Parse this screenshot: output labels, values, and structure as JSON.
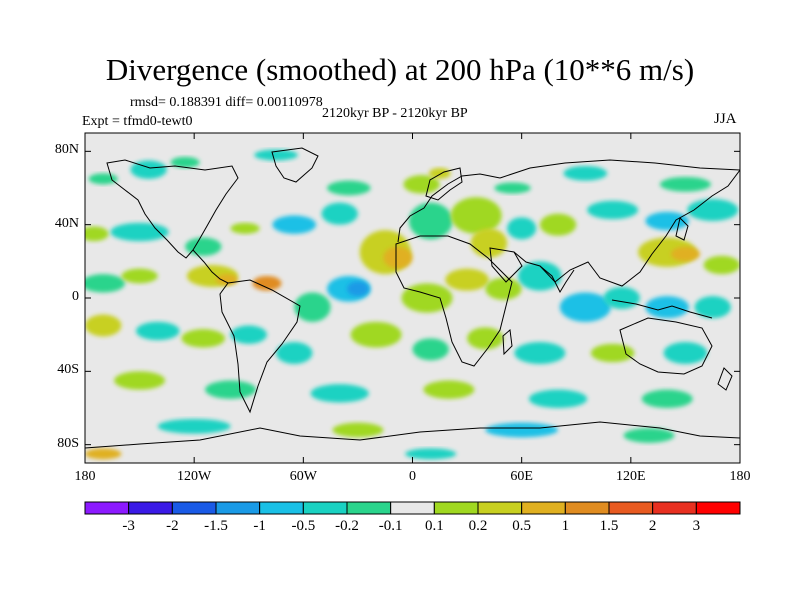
{
  "title": "Divergence (smoothed) at 200 hPa (10**6 m/s)",
  "stats": "rmsd= 0.188391 diff= 0.00110978",
  "period": "2120kyr BP - 2120kyr BP",
  "experiment": "Expt = tfmd0-tewt0",
  "season": "JJA",
  "axes": {
    "y_ticks": [
      {
        "label": "80N",
        "lat": 80
      },
      {
        "label": "40N",
        "lat": 40
      },
      {
        "label": "0",
        "lat": 0
      },
      {
        "label": "40S",
        "lat": -40
      },
      {
        "label": "80S",
        "lat": -80
      }
    ],
    "x_ticks": [
      {
        "label": "180",
        "lon": -180
      },
      {
        "label": "120W",
        "lon": -120
      },
      {
        "label": "60W",
        "lon": -60
      },
      {
        "label": "0",
        "lon": 0
      },
      {
        "label": "60E",
        "lon": 60
      },
      {
        "label": "120E",
        "lon": 120
      },
      {
        "label": "180",
        "lon": 180
      }
    ],
    "lon_range": [
      -180,
      180
    ],
    "lat_range": [
      -90,
      90
    ]
  },
  "colorbar": {
    "labels": [
      "-3",
      "-2",
      "-1.5",
      "-1",
      "-0.5",
      "-0.2",
      "-0.1",
      "0.1",
      "0.2",
      "0.5",
      "1",
      "1.5",
      "2",
      "3"
    ],
    "colors": [
      "#8c1aff",
      "#3a1ae6",
      "#1a5ae6",
      "#1a9ae6",
      "#1ac0e6",
      "#1ad2c2",
      "#2ad48c",
      "#e8e8e8",
      "#a0d820",
      "#c8d020",
      "#e0b020",
      "#e08c20",
      "#e85a20",
      "#e83020",
      "#ff0000"
    ]
  },
  "field": {
    "background": "#e8e8e8",
    "blobs": [
      {
        "lon": -170,
        "lat": 65,
        "rx": 8,
        "ry": 3,
        "c": "#2ad48c"
      },
      {
        "lon": -145,
        "lat": 70,
        "rx": 10,
        "ry": 5,
        "c": "#1ad2c2"
      },
      {
        "lon": -125,
        "lat": 74,
        "rx": 8,
        "ry": 3,
        "c": "#2ad48c"
      },
      {
        "lon": -75,
        "lat": 78,
        "rx": 12,
        "ry": 3,
        "c": "#1ad2c2"
      },
      {
        "lon": -35,
        "lat": 60,
        "rx": 12,
        "ry": 4,
        "c": "#2ad48c"
      },
      {
        "lon": 5,
        "lat": 62,
        "rx": 10,
        "ry": 5,
        "c": "#a0d820"
      },
      {
        "lon": 15,
        "lat": 68,
        "rx": 6,
        "ry": 3,
        "c": "#c8d020"
      },
      {
        "lon": 55,
        "lat": 60,
        "rx": 10,
        "ry": 3,
        "c": "#2ad48c"
      },
      {
        "lon": 95,
        "lat": 68,
        "rx": 12,
        "ry": 4,
        "c": "#1ad2c2"
      },
      {
        "lon": 150,
        "lat": 62,
        "rx": 14,
        "ry": 4,
        "c": "#2ad48c"
      },
      {
        "lon": -175,
        "lat": 35,
        "rx": 8,
        "ry": 4,
        "c": "#a0d820"
      },
      {
        "lon": -150,
        "lat": 36,
        "rx": 16,
        "ry": 5,
        "c": "#1ad2c2"
      },
      {
        "lon": -115,
        "lat": 28,
        "rx": 10,
        "ry": 5,
        "c": "#2ad48c"
      },
      {
        "lon": -92,
        "lat": 38,
        "rx": 8,
        "ry": 3,
        "c": "#a0d820"
      },
      {
        "lon": -65,
        "lat": 40,
        "rx": 12,
        "ry": 5,
        "c": "#1ac0e6"
      },
      {
        "lon": -40,
        "lat": 46,
        "rx": 10,
        "ry": 6,
        "c": "#1ad2c2"
      },
      {
        "lon": -15,
        "lat": 25,
        "rx": 14,
        "ry": 12,
        "c": "#c8d020"
      },
      {
        "lon": -8,
        "lat": 22,
        "rx": 8,
        "ry": 6,
        "c": "#e0b020"
      },
      {
        "lon": 10,
        "lat": 42,
        "rx": 12,
        "ry": 10,
        "c": "#2ad48c"
      },
      {
        "lon": 35,
        "lat": 45,
        "rx": 14,
        "ry": 10,
        "c": "#a0d820"
      },
      {
        "lon": 42,
        "lat": 30,
        "rx": 10,
        "ry": 8,
        "c": "#c8d020"
      },
      {
        "lon": 60,
        "lat": 38,
        "rx": 8,
        "ry": 6,
        "c": "#1ad2c2"
      },
      {
        "lon": 80,
        "lat": 40,
        "rx": 10,
        "ry": 6,
        "c": "#a0d820"
      },
      {
        "lon": 110,
        "lat": 48,
        "rx": 14,
        "ry": 5,
        "c": "#1ad2c2"
      },
      {
        "lon": 140,
        "lat": 42,
        "rx": 12,
        "ry": 5,
        "c": "#1ac0e6"
      },
      {
        "lon": 165,
        "lat": 48,
        "rx": 14,
        "ry": 6,
        "c": "#1ad2c2"
      },
      {
        "lon": 140,
        "lat": 25,
        "rx": 16,
        "ry": 8,
        "c": "#c8d020"
      },
      {
        "lon": 150,
        "lat": 24,
        "rx": 8,
        "ry": 4,
        "c": "#e0b020"
      },
      {
        "lon": 170,
        "lat": 18,
        "rx": 10,
        "ry": 5,
        "c": "#a0d820"
      },
      {
        "lon": -170,
        "lat": 8,
        "rx": 12,
        "ry": 5,
        "c": "#2ad48c"
      },
      {
        "lon": -150,
        "lat": 12,
        "rx": 10,
        "ry": 4,
        "c": "#a0d820"
      },
      {
        "lon": -110,
        "lat": 12,
        "rx": 14,
        "ry": 6,
        "c": "#c8d020"
      },
      {
        "lon": -102,
        "lat": 10,
        "rx": 6,
        "ry": 3,
        "c": "#e0b020"
      },
      {
        "lon": -80,
        "lat": 8,
        "rx": 8,
        "ry": 4,
        "c": "#e08c20"
      },
      {
        "lon": -35,
        "lat": 5,
        "rx": 12,
        "ry": 7,
        "c": "#1ac0e6"
      },
      {
        "lon": -30,
        "lat": 5,
        "rx": 6,
        "ry": 4,
        "c": "#1a9ae6"
      },
      {
        "lon": -55,
        "lat": -5,
        "rx": 10,
        "ry": 8,
        "c": "#2ad48c"
      },
      {
        "lon": 8,
        "lat": 0,
        "rx": 14,
        "ry": 8,
        "c": "#a0d820"
      },
      {
        "lon": 30,
        "lat": 10,
        "rx": 12,
        "ry": 6,
        "c": "#c8d020"
      },
      {
        "lon": 50,
        "lat": 5,
        "rx": 10,
        "ry": 6,
        "c": "#a0d820"
      },
      {
        "lon": 70,
        "lat": 12,
        "rx": 12,
        "ry": 8,
        "c": "#1ad2c2"
      },
      {
        "lon": 95,
        "lat": -5,
        "rx": 14,
        "ry": 8,
        "c": "#1ac0e6"
      },
      {
        "lon": 115,
        "lat": 0,
        "rx": 10,
        "ry": 6,
        "c": "#1ad2c2"
      },
      {
        "lon": 140,
        "lat": -5,
        "rx": 12,
        "ry": 6,
        "c": "#1ac0e6"
      },
      {
        "lon": 165,
        "lat": -5,
        "rx": 10,
        "ry": 6,
        "c": "#1ad2c2"
      },
      {
        "lon": -170,
        "lat": -15,
        "rx": 10,
        "ry": 6,
        "c": "#c8d020"
      },
      {
        "lon": -140,
        "lat": -18,
        "rx": 12,
        "ry": 5,
        "c": "#1ad2c2"
      },
      {
        "lon": -115,
        "lat": -22,
        "rx": 12,
        "ry": 5,
        "c": "#a0d820"
      },
      {
        "lon": -90,
        "lat": -20,
        "rx": 10,
        "ry": 5,
        "c": "#1ad2c2"
      },
      {
        "lon": -65,
        "lat": -30,
        "rx": 10,
        "ry": 6,
        "c": "#1ad2c2"
      },
      {
        "lon": -20,
        "lat": -20,
        "rx": 14,
        "ry": 7,
        "c": "#a0d820"
      },
      {
        "lon": 10,
        "lat": -28,
        "rx": 10,
        "ry": 6,
        "c": "#2ad48c"
      },
      {
        "lon": 40,
        "lat": -22,
        "rx": 10,
        "ry": 6,
        "c": "#a0d820"
      },
      {
        "lon": 70,
        "lat": -30,
        "rx": 14,
        "ry": 6,
        "c": "#1ad2c2"
      },
      {
        "lon": 110,
        "lat": -30,
        "rx": 12,
        "ry": 5,
        "c": "#a0d820"
      },
      {
        "lon": 150,
        "lat": -30,
        "rx": 12,
        "ry": 6,
        "c": "#1ad2c2"
      },
      {
        "lon": -150,
        "lat": -45,
        "rx": 14,
        "ry": 5,
        "c": "#a0d820"
      },
      {
        "lon": -100,
        "lat": -50,
        "rx": 14,
        "ry": 5,
        "c": "#2ad48c"
      },
      {
        "lon": -40,
        "lat": -52,
        "rx": 16,
        "ry": 5,
        "c": "#1ad2c2"
      },
      {
        "lon": 20,
        "lat": -50,
        "rx": 14,
        "ry": 5,
        "c": "#a0d820"
      },
      {
        "lon": 80,
        "lat": -55,
        "rx": 16,
        "ry": 5,
        "c": "#1ad2c2"
      },
      {
        "lon": 140,
        "lat": -55,
        "rx": 14,
        "ry": 5,
        "c": "#2ad48c"
      },
      {
        "lon": -120,
        "lat": -70,
        "rx": 20,
        "ry": 4,
        "c": "#1ad2c2"
      },
      {
        "lon": -30,
        "lat": -72,
        "rx": 14,
        "ry": 4,
        "c": "#a0d820"
      },
      {
        "lon": 60,
        "lat": -72,
        "rx": 20,
        "ry": 4,
        "c": "#1ac0e6"
      },
      {
        "lon": 130,
        "lat": -75,
        "rx": 14,
        "ry": 4,
        "c": "#2ad48c"
      },
      {
        "lon": -170,
        "lat": -85,
        "rx": 10,
        "ry": 3,
        "c": "#e0b020"
      },
      {
        "lon": 10,
        "lat": -85,
        "rx": 14,
        "ry": 3,
        "c": "#1ad2c2"
      }
    ]
  }
}
